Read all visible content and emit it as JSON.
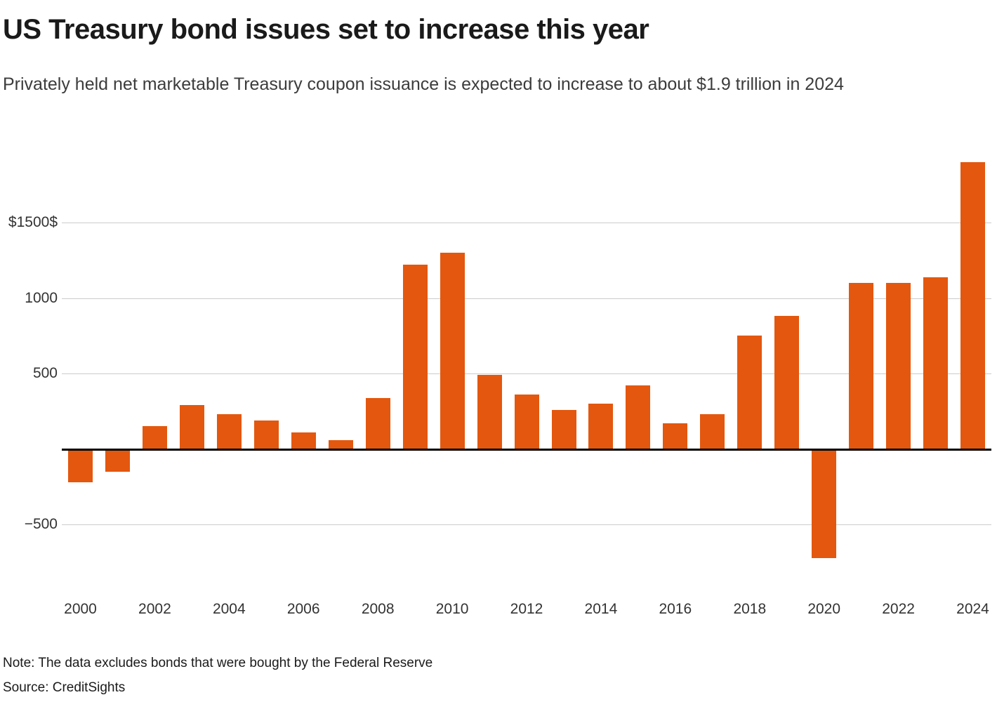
{
  "header": {
    "title": "US Treasury bond issues set to increase this year",
    "subtitle": "Privately held net marketable Treasury coupon issuance is expected to increase to about $1.9 trillion in 2024"
  },
  "footer": {
    "note": "Note: The data excludes bonds that were bought by the Federal Reserve",
    "source": "Source: CreditSights"
  },
  "chart_data": {
    "type": "bar",
    "title": "US Treasury bond issues set to increase this year",
    "subtitle": "Privately held net marketable Treasury coupon issuance is expected to increase to about $1.9 trillion in 2024",
    "categories": [
      2000,
      2001,
      2002,
      2003,
      2004,
      2005,
      2006,
      2007,
      2008,
      2009,
      2010,
      2011,
      2012,
      2013,
      2014,
      2015,
      2016,
      2017,
      2018,
      2019,
      2020,
      2021,
      2022,
      2023,
      2024
    ],
    "values": [
      -220,
      -150,
      150,
      290,
      230,
      190,
      110,
      60,
      340,
      1220,
      1300,
      490,
      360,
      260,
      300,
      420,
      170,
      230,
      750,
      880,
      -720,
      1100,
      1100,
      1140,
      1900
    ],
    "bar_color": "#e4570e",
    "grid": true,
    "gridline_color": "#cccccc",
    "zero_line_color": "#000000",
    "ylim": [
      -950,
      2100
    ],
    "xlabel": "",
    "ylabel": "",
    "y_ticks": [
      {
        "value": 1500,
        "label": "$1500$"
      },
      {
        "value": 1000,
        "label": "1000"
      },
      {
        "value": 500,
        "label": "500"
      },
      {
        "value": -500,
        "label": "−500"
      }
    ],
    "x_tick_years": [
      2000,
      2002,
      2004,
      2006,
      2008,
      2010,
      2012,
      2014,
      2016,
      2018,
      2020,
      2022,
      2024
    ]
  }
}
